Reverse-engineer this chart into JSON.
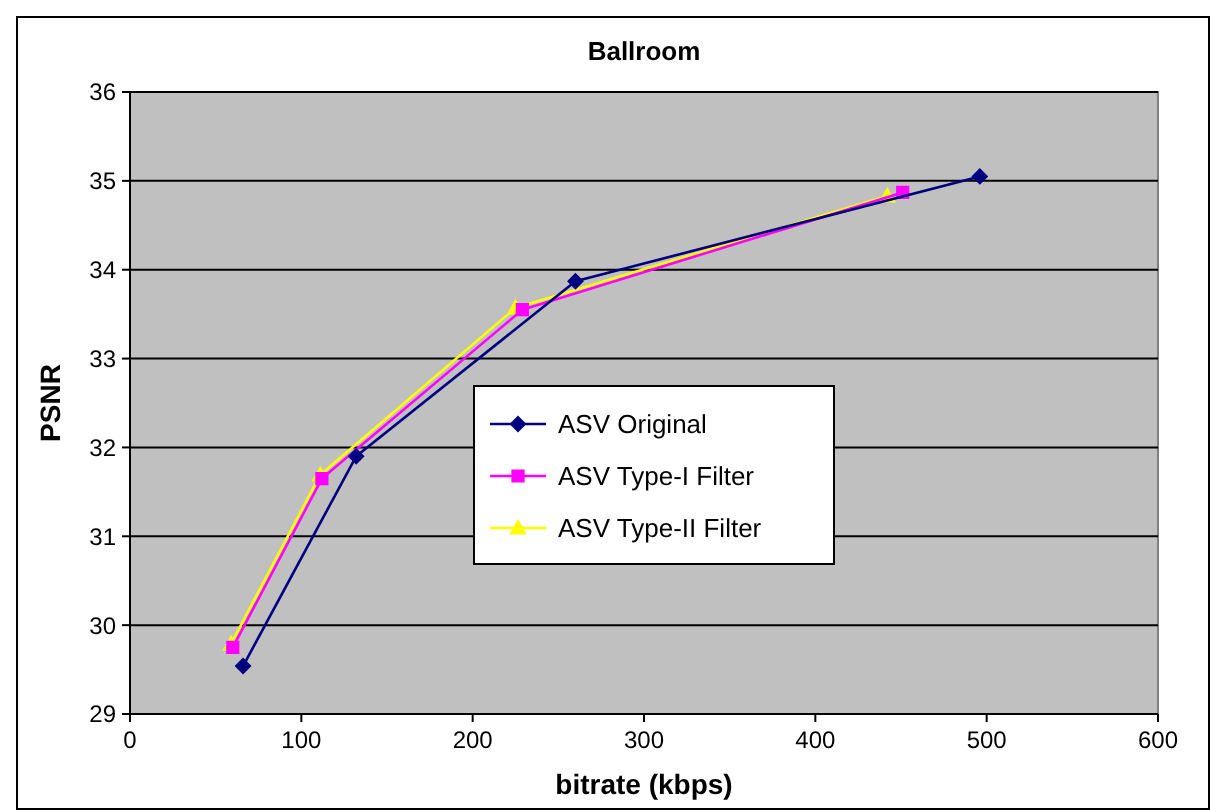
{
  "chart_data": {
    "type": "line",
    "title": "Ballroom",
    "xlabel": "bitrate (kbps)",
    "ylabel": "PSNR",
    "xlim": [
      0,
      600
    ],
    "xticks": [
      0,
      100,
      200,
      300,
      400,
      500,
      600
    ],
    "ylim": [
      29,
      36
    ],
    "yticks": [
      29,
      30,
      31,
      32,
      33,
      34,
      35,
      36
    ],
    "grid": "y",
    "legend": "right",
    "series": [
      {
        "name": "ASV Original",
        "color": "#000080",
        "marker": "diamond",
        "x": [
          66,
          132,
          260,
          496
        ],
        "values": [
          29.54,
          31.9,
          33.87,
          35.05
        ]
      },
      {
        "name": "ASV Type-I Filter",
        "color": "#ff00ff",
        "marker": "square",
        "x": [
          60,
          112,
          229,
          451
        ],
        "values": [
          29.75,
          31.65,
          33.55,
          34.87
        ]
      },
      {
        "name": "ASV Type-II Filter",
        "color": "#ffff00",
        "marker": "triangle",
        "x": [
          59,
          111,
          225,
          442
        ],
        "values": [
          29.79,
          31.69,
          33.57,
          34.83
        ]
      }
    ]
  }
}
